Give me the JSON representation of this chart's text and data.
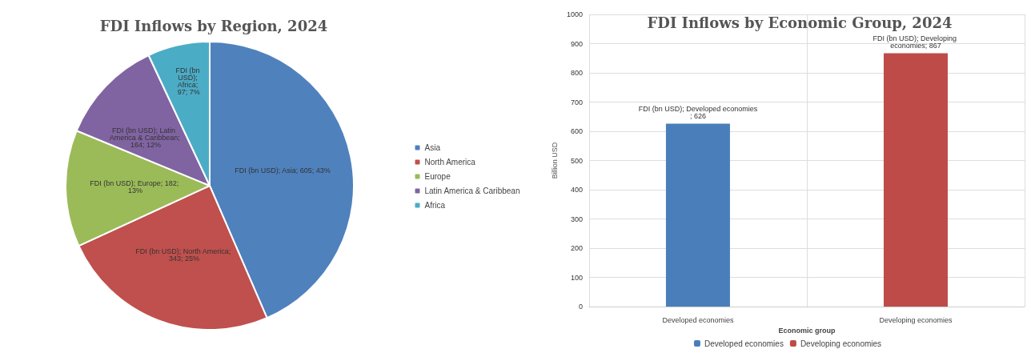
{
  "chart_data": [
    {
      "type": "pie",
      "title": "FDI Inflows by Region, 2024",
      "categories": [
        "Asia",
        "North America",
        "Europe",
        "Latin America & Caribbean",
        "Africa"
      ],
      "values": [
        605,
        343,
        182,
        164,
        97
      ],
      "colors": [
        "#4f81bd",
        "#c0504d",
        "#9bbb59",
        "#8064a2",
        "#4bacc6"
      ],
      "value_labels": [
        "FDI (bn USD); Asia; 605; 43%",
        "FDI (bn USD); North America; 343; 25%",
        "FDI (bn USD); Europe; 182; 13%",
        "FDI (bn USD); Latin America & Caribbean; 164; 12%",
        "FDI (bn USD); Africa; 97; 7%"
      ],
      "legend": "right"
    },
    {
      "type": "bar",
      "title": "FDI Inflows by Economic Group, 2024",
      "xlabel": "Economic group",
      "ylabel": "Billion USD",
      "categories": [
        "Developed economies",
        "Developing economies"
      ],
      "stacked": true,
      "series": [
        {
          "name": "Developed economies",
          "color": "#4a7ebb",
          "values": [
            626,
            null
          ],
          "value_labels": [
            "FDI (bn USD); Developed economies; 626",
            null
          ]
        },
        {
          "name": "Developing economies",
          "color": "#be4b48",
          "values": [
            null,
            867
          ],
          "value_labels": [
            null,
            "FDI (bn USD); Developing economies; 867"
          ]
        }
      ],
      "ylim": [
        0,
        1000
      ],
      "yticks": [
        0,
        100,
        200,
        300,
        400,
        500,
        600,
        700,
        800,
        900,
        1000
      ],
      "grid": true,
      "legend": "bottom"
    }
  ]
}
